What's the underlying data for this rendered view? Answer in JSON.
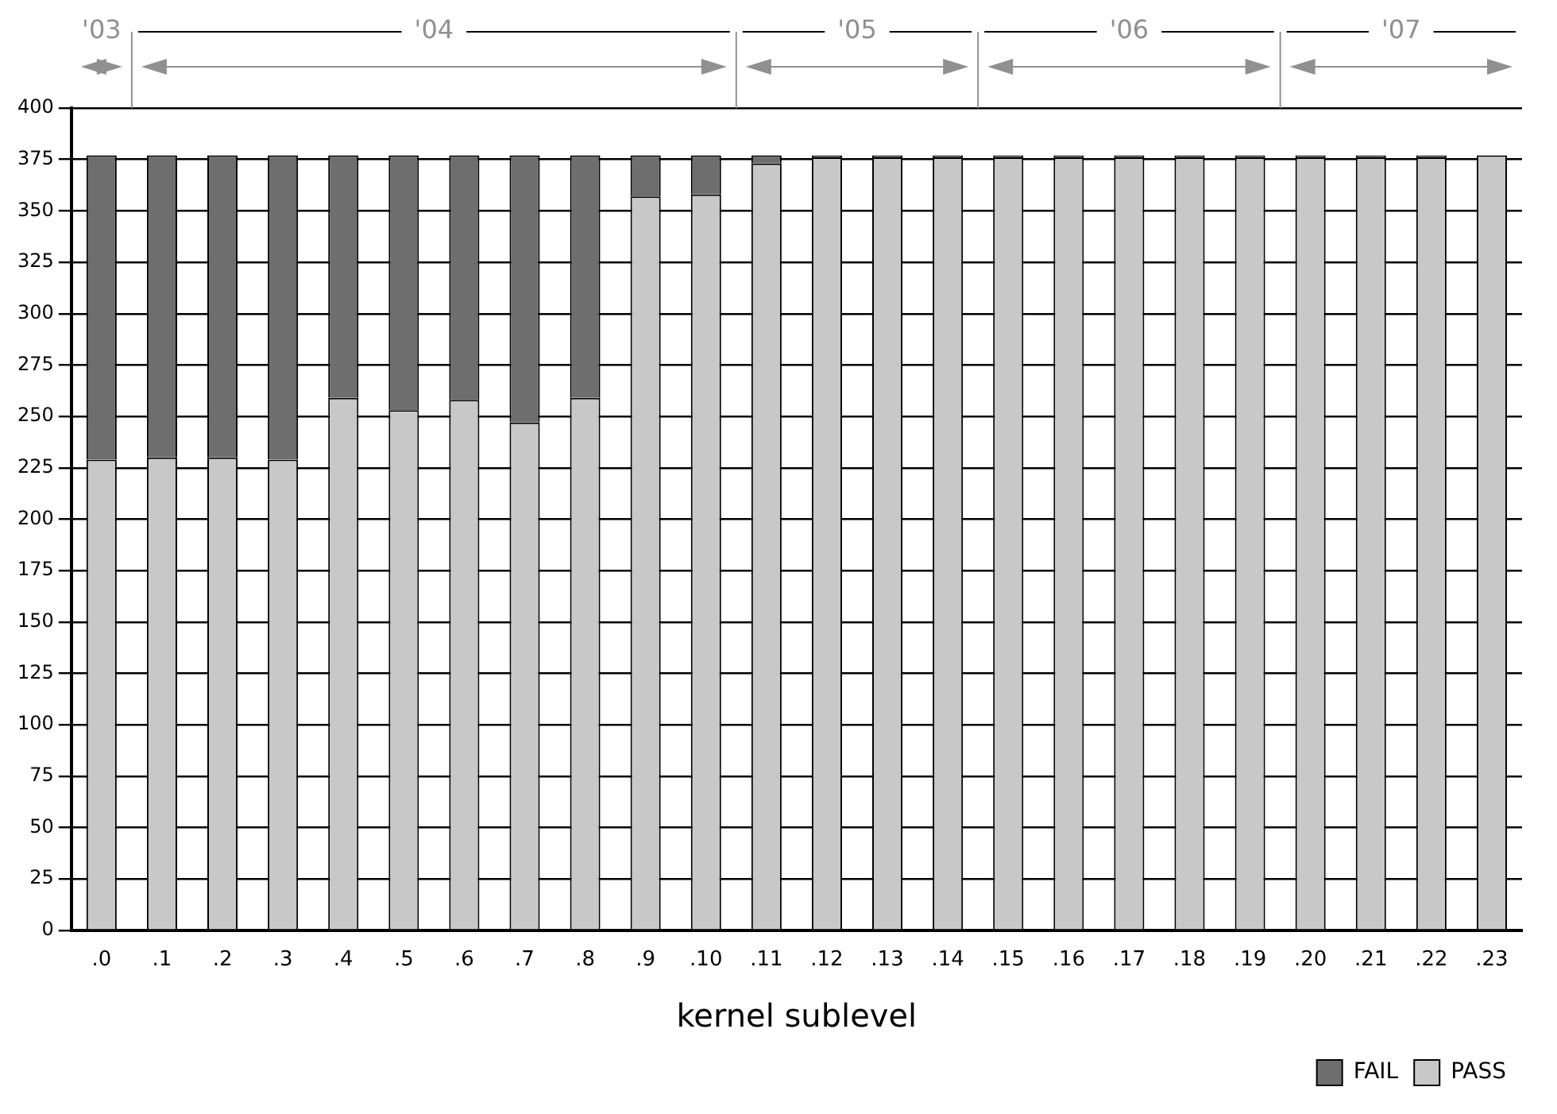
{
  "chart_data": {
    "type": "bar",
    "stacked": true,
    "xlabel": "kernel sublevel",
    "categories": [
      ".0",
      ".1",
      ".2",
      ".3",
      ".4",
      ".5",
      ".6",
      ".7",
      ".8",
      ".9",
      ".10",
      ".11",
      ".12",
      ".13",
      ".14",
      ".15",
      ".16",
      ".17",
      ".18",
      ".19",
      ".20",
      ".21",
      ".22",
      ".23"
    ],
    "series": [
      {
        "name": "PASS",
        "color": "#c8c8c8",
        "values": [
          229,
          230,
          230,
          229,
          259,
          253,
          258,
          247,
          259,
          357,
          358,
          373,
          376,
          376,
          376,
          376,
          376,
          376,
          376,
          376,
          376,
          376,
          376,
          377
        ]
      },
      {
        "name": "FAIL",
        "color": "#6e6e6e",
        "values": [
          148,
          147,
          147,
          148,
          118,
          124,
          119,
          130,
          118,
          20,
          19,
          4,
          1,
          1,
          1,
          1,
          1,
          1,
          1,
          1,
          1,
          1,
          1,
          0
        ]
      }
    ],
    "ylim": [
      0,
      400
    ],
    "yticks": [
      0,
      25,
      50,
      75,
      100,
      125,
      150,
      175,
      200,
      225,
      250,
      275,
      300,
      325,
      350,
      375,
      400
    ],
    "grid": "y",
    "legend": "bottom right",
    "annotations": [
      "'03",
      "'04",
      "'05",
      "'06",
      "'07"
    ]
  }
}
